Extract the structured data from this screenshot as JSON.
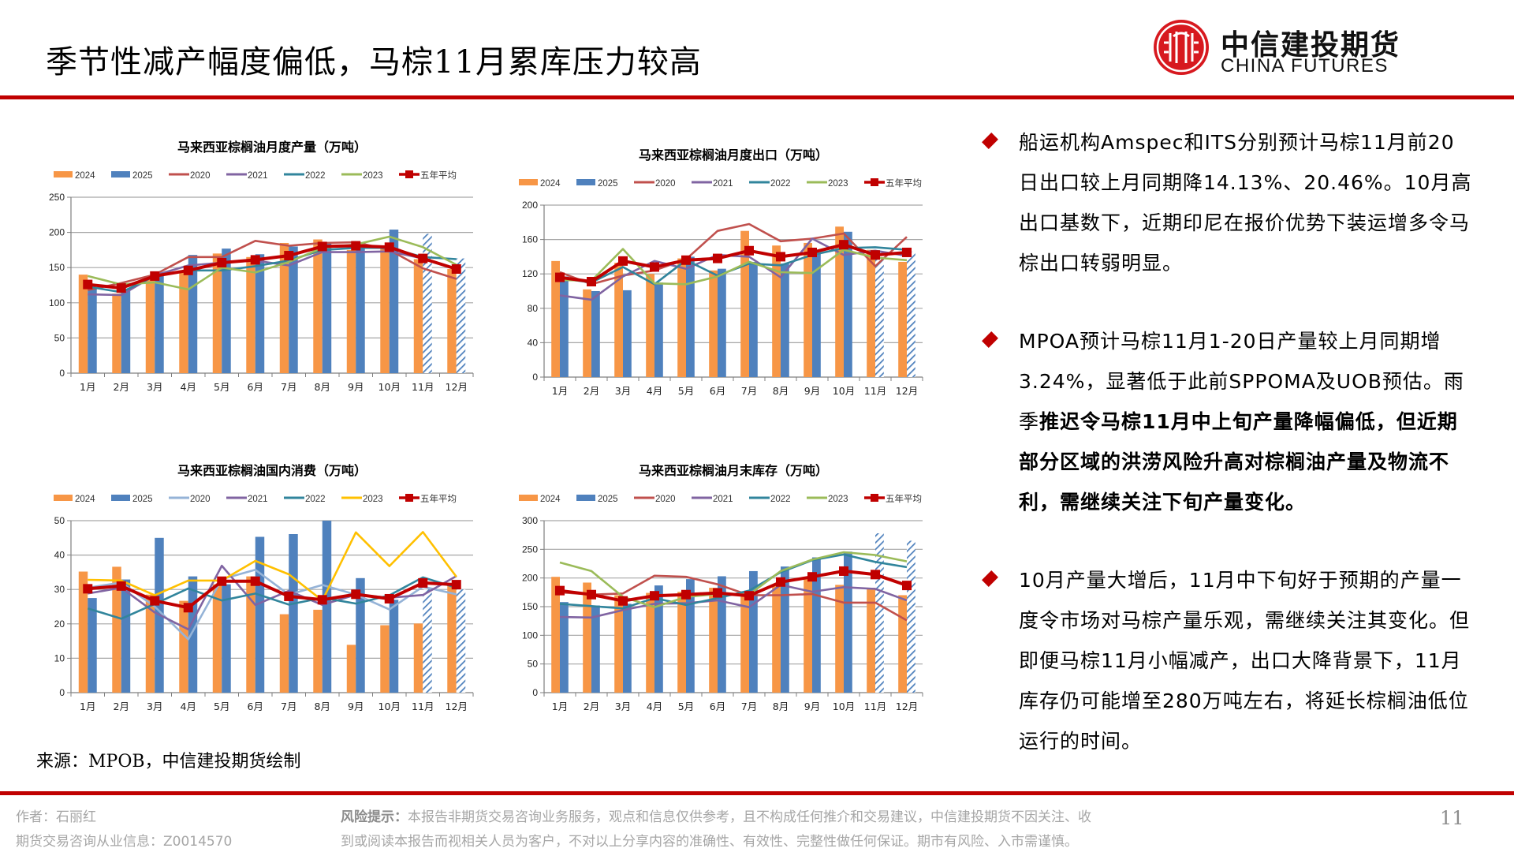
{
  "header": {
    "title": "季节性减产幅度偏低，马棕11月累库压力较高",
    "logo_cn": "中信建投期货",
    "logo_en": "CHINA FUTURES"
  },
  "colors": {
    "accent": "#c00000",
    "s2024": "#f79646",
    "s2025": "#4f81bd",
    "s2020": "#c0504d",
    "s2020_consumption": "#95b3d7",
    "s2021": "#8064a2",
    "s2022": "#31859c",
    "s2023": "#9bbb59",
    "s2023_consumption": "#ffc000",
    "avg": "#c00000"
  },
  "chart_data": [
    {
      "id": "production",
      "type": "bar",
      "title": "马来西亚棕榈油月度产量（万吨）",
      "categories": [
        "1月",
        "2月",
        "3月",
        "4月",
        "5月",
        "6月",
        "7月",
        "8月",
        "9月",
        "10月",
        "11月",
        "12月"
      ],
      "ylim": [
        0,
        250
      ],
      "yticks": [
        0,
        50,
        100,
        150,
        200,
        250
      ],
      "legend": "top",
      "grid": true,
      "bars": [
        {
          "name": "2024",
          "values": [
            140,
            113,
            133,
            145,
            170,
            165,
            185,
            190,
            175,
            180,
            162,
            148
          ]
        },
        {
          "name": "2025",
          "values": [
            122,
            118,
            138,
            168,
            177,
            169,
            180,
            185,
            183,
            204,
            198,
            163
          ],
          "hatched_from": 10
        }
      ],
      "lines": [
        {
          "name": "2020",
          "values": [
            118,
            128,
            140,
            165,
            165,
            188,
            181,
            185,
            186,
            175,
            149,
            134
          ]
        },
        {
          "name": "2021",
          "values": [
            112,
            111,
            139,
            153,
            157,
            160,
            153,
            172,
            172,
            173,
            163,
            148
          ]
        },
        {
          "name": "2022",
          "values": [
            123,
            115,
            138,
            146,
            146,
            152,
            160,
            175,
            178,
            178,
            165,
            162
          ]
        },
        {
          "name": "2023",
          "values": [
            138,
            126,
            129,
            119,
            150,
            143,
            158,
            178,
            183,
            194,
            179,
            154
          ]
        },
        {
          "name": "五年平均",
          "values": [
            126,
            121,
            138,
            146,
            157,
            161,
            167,
            180,
            181,
            179,
            163,
            148
          ],
          "marker": true
        }
      ]
    },
    {
      "id": "exports",
      "type": "bar",
      "title": "马来西亚棕榈油月度出口（万吨）",
      "categories": [
        "1月",
        "2月",
        "3月",
        "4月",
        "5月",
        "6月",
        "7月",
        "8月",
        "9月",
        "10月",
        "11月",
        "12月"
      ],
      "ylim": [
        0,
        200
      ],
      "yticks": [
        0,
        40,
        80,
        120,
        160,
        200
      ],
      "legend": "top",
      "grid": true,
      "bars": [
        {
          "name": "2024",
          "values": [
            135,
            102,
            133,
            120,
            138,
            124,
            170,
            153,
            156,
            175,
            148,
            134
          ]
        },
        {
          "name": "2025",
          "values": [
            117,
            100,
            101,
            110,
            140,
            126,
            134,
            132,
            144,
            169,
            137,
            146
          ],
          "hatched_from": 10
        }
      ],
      "lines": [
        {
          "name": "2020",
          "values": [
            122,
            108,
            118,
            124,
            137,
            170,
            178,
            158,
            161,
            167,
            129,
            163
          ]
        },
        {
          "name": "2021",
          "values": [
            95,
            90,
            117,
            135,
            126,
            142,
            140,
            116,
            161,
            142,
            147,
            141
          ]
        },
        {
          "name": "2022",
          "values": [
            115,
            110,
            128,
            108,
            136,
            118,
            132,
            130,
            142,
            150,
            151,
            148
          ]
        },
        {
          "name": "2023",
          "values": [
            113,
            112,
            149,
            109,
            108,
            117,
            134,
            122,
            121,
            148,
            139,
            136
          ]
        },
        {
          "name": "五年平均",
          "values": [
            116,
            111,
            135,
            128,
            136,
            138,
            147,
            140,
            145,
            154,
            142,
            145
          ],
          "marker": true
        }
      ]
    },
    {
      "id": "consumption",
      "type": "bar",
      "title": "马来西亚棕榈油国内消费（万吨）",
      "categories": [
        "1月",
        "2月",
        "3月",
        "4月",
        "5月",
        "6月",
        "7月",
        "8月",
        "9月",
        "10月",
        "11月",
        "12月"
      ],
      "ylim": [
        0,
        50
      ],
      "yticks": [
        0,
        10,
        20,
        30,
        40,
        50
      ],
      "legend": "top",
      "grid": true,
      "bars": [
        {
          "name": "2024",
          "values": [
            35.2,
            36.6,
            28.5,
            26.7,
            31.5,
            33.8,
            22.8,
            24.1,
            13.9,
            19.6,
            20.1,
            31.8
          ]
        },
        {
          "name": "2025",
          "values": [
            27.5,
            32.9,
            45.0,
            33.8,
            31.5,
            45.3,
            46.1,
            50.0,
            33.3,
            27.0,
            30.0,
            30.0
          ],
          "hatched_from": 10
        }
      ],
      "lines": [
        {
          "name": "2020",
          "values": [
            30.5,
            32.0,
            25.0,
            15.5,
            33.0,
            35.7,
            28.5,
            31.3,
            28.5,
            24.2,
            30.8,
            28.6
          ],
          "alt_color": true
        },
        {
          "name": "2021",
          "values": [
            28.8,
            30.5,
            23.3,
            18.4,
            36.9,
            25.5,
            29.6,
            25.5,
            28.5,
            27.6,
            28.4,
            33.9
          ]
        },
        {
          "name": "2022",
          "values": [
            24.5,
            21.5,
            25.8,
            30.3,
            26.8,
            28.8,
            25.6,
            27.6,
            25.9,
            28.3,
            33.5,
            30.5
          ]
        },
        {
          "name": "2023",
          "values": [
            32.8,
            32.6,
            28.3,
            32.6,
            32.6,
            38.3,
            34.4,
            26.8,
            46.6,
            36.8,
            46.7,
            33.7
          ],
          "alt_color": true
        },
        {
          "name": "五年平均",
          "values": [
            30.2,
            31.0,
            26.7,
            24.7,
            32.4,
            32.4,
            28.0,
            27.0,
            28.6,
            27.3,
            31.9,
            31.4
          ],
          "marker": true
        }
      ]
    },
    {
      "id": "inventory",
      "type": "bar",
      "title": "马来西亚棕榈油月末库存（万吨）",
      "categories": [
        "1月",
        "2月",
        "3月",
        "4月",
        "5月",
        "6月",
        "7月",
        "8月",
        "9月",
        "10月",
        "11月",
        "12月"
      ],
      "ylim": [
        0,
        300
      ],
      "yticks": [
        0,
        50,
        100,
        150,
        200,
        250,
        300
      ],
      "legend": "top",
      "grid": true,
      "bars": [
        {
          "name": "2024",
          "values": [
            202,
            192,
            170,
            174,
            176,
            183,
            171,
            188,
            200,
            188,
            183,
            170
          ]
        },
        {
          "name": "2025",
          "values": [
            158,
            152,
            155,
            187,
            198,
            203,
            212,
            220,
            236,
            246,
            278,
            265
          ],
          "hatched_from": 10
        }
      ],
      "lines": [
        {
          "name": "2020",
          "values": [
            175,
            171,
            173,
            204,
            202,
            189,
            170,
            170,
            172,
            157,
            157,
            126
          ]
        },
        {
          "name": "2021",
          "values": [
            132,
            131,
            144,
            155,
            156,
            161,
            149,
            188,
            176,
            184,
            181,
            161
          ]
        },
        {
          "name": "2022",
          "values": [
            155,
            151,
            147,
            165,
            153,
            165,
            178,
            210,
            231,
            241,
            228,
            219
          ]
        },
        {
          "name": "2023",
          "values": [
            227,
            212,
            167,
            149,
            167,
            172,
            171,
            212,
            232,
            245,
            240,
            229
          ]
        },
        {
          "name": "五年平均",
          "values": [
            178,
            171,
            160,
            169,
            171,
            174,
            169,
            193,
            202,
            212,
            206,
            187
          ],
          "marker": true
        }
      ]
    }
  ],
  "bullets": [
    {
      "normal": "船运机构Amspec和ITS分别预计马棕11月前20日出口较上月同期降14.13%、20.46%。10月高出口基数下，近期印尼在报价优势下装运增多令马棕出口转弱明显。",
      "bold": ""
    },
    {
      "normal": "MPOA预计马棕11月1-20日产量较上月同期增3.24%，显著低于此前SPPOMA及UOB预估。雨季",
      "bold": "推迟令马棕11月中上旬产量降幅偏低，但近期部分区域的洪涝风险升高对棕榈油产量及物流不利，需继续关注下旬产量变化。"
    },
    {
      "normal": "10月产量大增后，11月中下旬好于预期的产量一度令市场对马棕产量乐观，需继续关注其变化。但即便马棕11月小幅减产，出口大降背景下，11月库存仍可能增至280万吨左右，将延长棕榈油低位运行的时间。",
      "bold": ""
    }
  ],
  "source": "来源：MPOB，中信建投期货绘制",
  "footer": {
    "author": "作者：石丽红",
    "license": "期货交易咨询从业信息：Z0014570",
    "risk_label": "风险提示：",
    "risk_line1": "本报告非期货交易咨询业务服务，观点和信息仅供参考，且不构成任何推介和交易建议，中信建投期货不因关注、收",
    "risk_line2": "到或阅读本报告而视相关人员为客户，不对以上分享内容的准确性、有效性、完整性做任何保证。期市有风险、入市需谨慎。",
    "page_number": "11"
  }
}
